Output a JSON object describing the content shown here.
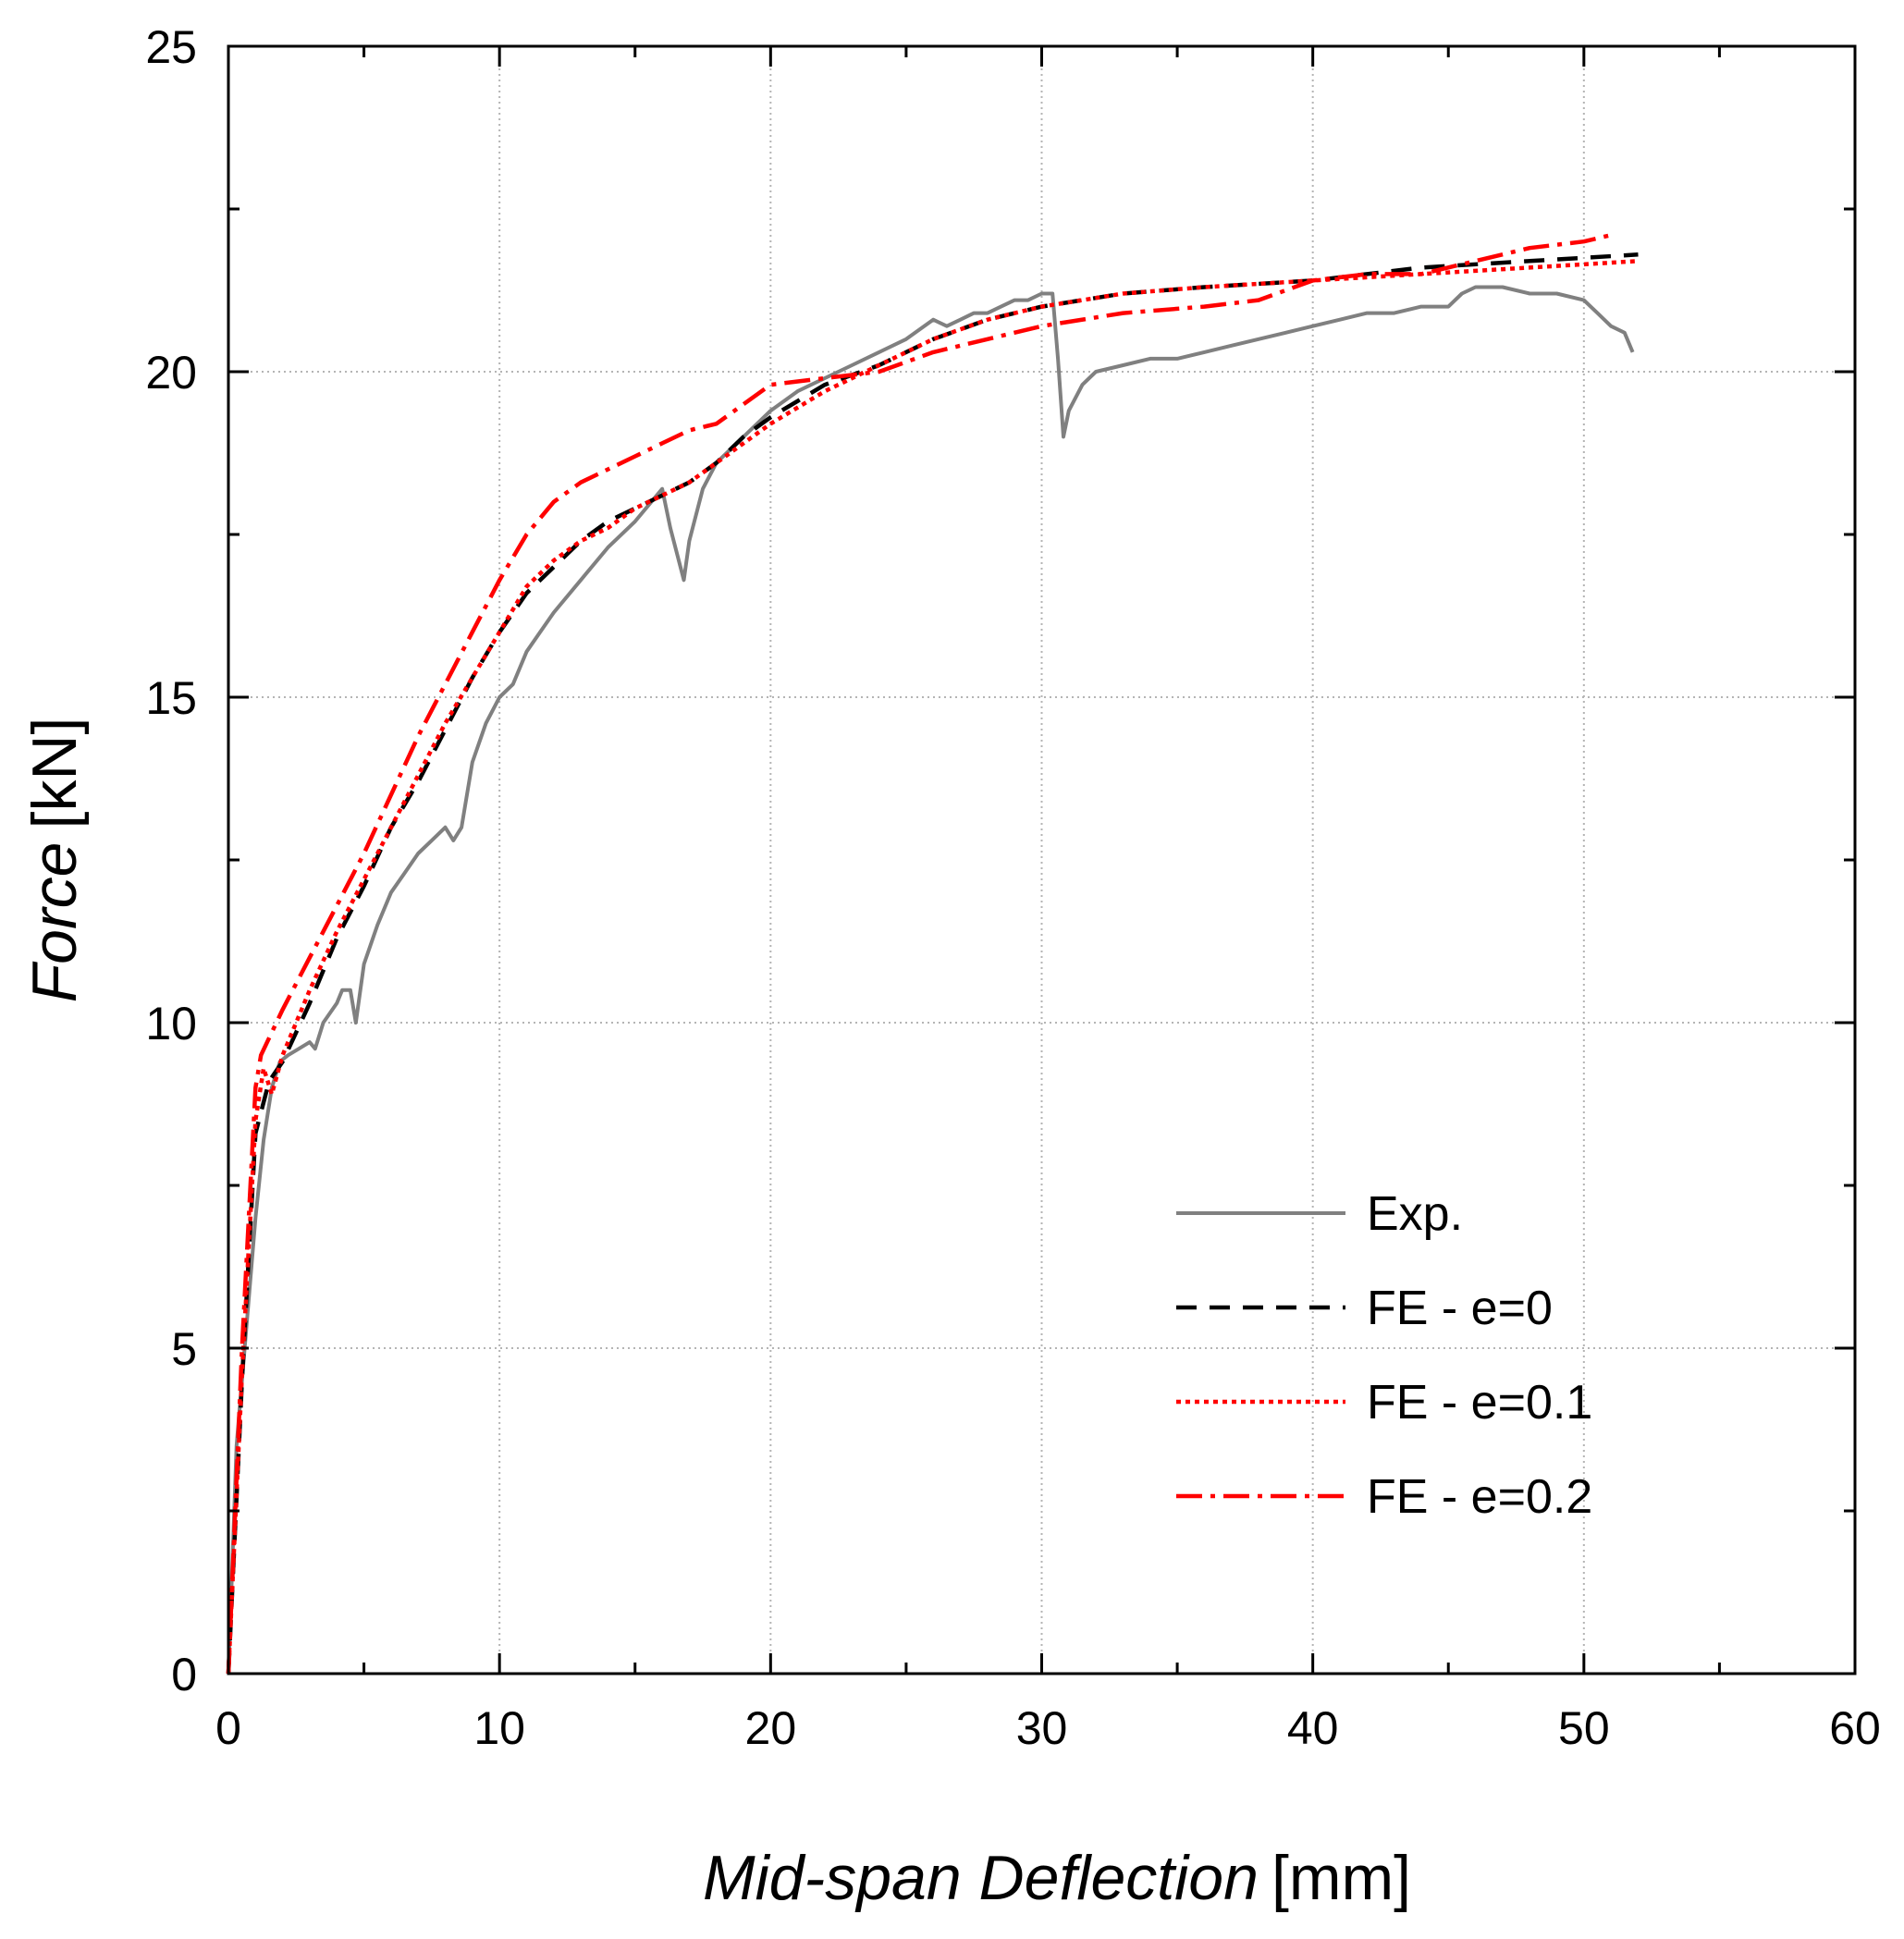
{
  "chart_data": {
    "type": "line",
    "title": "",
    "xlabel": {
      "italic": "Mid-span Deflection",
      "unit": "[mm]"
    },
    "ylabel": {
      "italic": "Force",
      "unit": "[kN]"
    },
    "xlim": [
      0,
      60
    ],
    "ylim": [
      0,
      25
    ],
    "x_ticks": [
      0,
      10,
      20,
      30,
      40,
      50,
      60
    ],
    "y_ticks": [
      0,
      5,
      10,
      15,
      20,
      25
    ],
    "x_tick_labels": [
      "0",
      "10",
      "20",
      "30",
      "40",
      "50",
      "60"
    ],
    "y_tick_labels": [
      "0",
      "5",
      "10",
      "15",
      "20",
      "25"
    ],
    "grid": true,
    "legend_position": "bottom-right",
    "series": [
      {
        "name": "Exp.",
        "color": "#808080",
        "style": "solid",
        "x": [
          0,
          0.3,
          0.6,
          1.0,
          1.3,
          1.6,
          1.9,
          2.2,
          2.6,
          3.0,
          3.2,
          3.5,
          4.0,
          4.2,
          4.5,
          4.7,
          5.0,
          5.5,
          6.0,
          6.5,
          7.0,
          7.5,
          8.0,
          8.3,
          8.6,
          9.0,
          9.5,
          10.0,
          10.5,
          11.0,
          11.5,
          12.0,
          13.0,
          14.0,
          15.0,
          16.0,
          16.3,
          16.8,
          17.0,
          17.5,
          18.0,
          19.0,
          20.0,
          21.0,
          22.0,
          23.0,
          24.0,
          25.0,
          26.0,
          26.5,
          27.0,
          27.5,
          28.0,
          28.5,
          29.0,
          29.5,
          30.0,
          30.4,
          30.6,
          30.8,
          31.0,
          31.5,
          32.0,
          33.0,
          34.0,
          35.0,
          36.0,
          37.0,
          38.0,
          39.0,
          40.0,
          41.0,
          42.0,
          43.0,
          44.0,
          45.0,
          45.5,
          46.0,
          47.0,
          48.0,
          49.0,
          50.0,
          50.5,
          51.0,
          51.5,
          51.8
        ],
        "y": [
          0,
          3.5,
          5.0,
          7.0,
          8.2,
          9.0,
          9.4,
          9.5,
          9.6,
          9.7,
          9.6,
          10.0,
          10.3,
          10.5,
          10.5,
          10.0,
          10.9,
          11.5,
          12.0,
          12.3,
          12.6,
          12.8,
          13.0,
          12.8,
          13.0,
          14.0,
          14.6,
          15.0,
          15.2,
          15.7,
          16.0,
          16.3,
          16.8,
          17.3,
          17.7,
          18.2,
          17.6,
          16.8,
          17.4,
          18.2,
          18.6,
          19.0,
          19.4,
          19.7,
          19.9,
          20.1,
          20.3,
          20.5,
          20.8,
          20.7,
          20.8,
          20.9,
          20.9,
          21.0,
          21.1,
          21.1,
          21.2,
          21.2,
          20.2,
          19.0,
          19.4,
          19.8,
          20.0,
          20.1,
          20.2,
          20.2,
          20.3,
          20.4,
          20.5,
          20.6,
          20.7,
          20.8,
          20.9,
          20.9,
          21.0,
          21.0,
          21.2,
          21.3,
          21.3,
          21.2,
          21.2,
          21.1,
          20.9,
          20.7,
          20.6,
          20.3
        ]
      },
      {
        "name": "FE - e=0",
        "color": "#000000",
        "style": "dashed",
        "x": [
          0,
          0.5,
          1.0,
          1.5,
          2.0,
          3.0,
          4.0,
          5.0,
          6.0,
          7.0,
          8.0,
          9.0,
          10.0,
          11.0,
          12.0,
          13.0,
          14.0,
          15.0,
          16.0,
          17.0,
          18.0,
          19.0,
          20.0,
          22.0,
          24.0,
          26.0,
          28.0,
          30.0,
          33.0,
          36.0,
          40.0,
          44.0,
          48.0,
          52.0
        ],
        "y": [
          0,
          4.5,
          8.3,
          9.1,
          9.4,
          10.3,
          11.3,
          12.1,
          13.0,
          13.7,
          14.5,
          15.3,
          16.0,
          16.6,
          17.0,
          17.4,
          17.7,
          17.9,
          18.1,
          18.3,
          18.6,
          19.0,
          19.3,
          19.8,
          20.1,
          20.5,
          20.8,
          21.0,
          21.2,
          21.3,
          21.4,
          21.6,
          21.7,
          21.8
        ]
      },
      {
        "name": "FE - e=0.1",
        "color": "#ff0000",
        "style": "dotted",
        "x": [
          0,
          0.5,
          1.0,
          1.3,
          1.6,
          2.0,
          3.0,
          4.0,
          5.0,
          6.0,
          7.0,
          8.0,
          9.0,
          10.0,
          11.0,
          12.0,
          13.0,
          14.0,
          15.0,
          16.0,
          17.0,
          18.0,
          19.0,
          20.0,
          22.0,
          24.0,
          26.0,
          28.0,
          30.0,
          33.0,
          36.0,
          40.0,
          44.0,
          48.0,
          52.0
        ],
        "y": [
          0,
          4.6,
          8.5,
          9.3,
          8.9,
          9.5,
          10.5,
          11.4,
          12.2,
          13.0,
          13.8,
          14.6,
          15.3,
          16.0,
          16.7,
          17.1,
          17.4,
          17.6,
          17.9,
          18.1,
          18.3,
          18.6,
          18.9,
          19.2,
          19.7,
          20.1,
          20.5,
          20.8,
          21.0,
          21.2,
          21.3,
          21.4,
          21.5,
          21.6,
          21.7
        ]
      },
      {
        "name": "FE - e=0.2",
        "color": "#ff0000",
        "style": "dashdot",
        "x": [
          0,
          0.5,
          1.0,
          1.2,
          2.0,
          3.0,
          4.0,
          5.0,
          6.0,
          7.0,
          8.0,
          9.0,
          10.0,
          11.0,
          12.0,
          13.0,
          14.0,
          15.0,
          16.0,
          17.0,
          18.0,
          19.0,
          20.0,
          22.0,
          24.0,
          26.0,
          28.0,
          30.0,
          33.0,
          36.0,
          38.0,
          40.0,
          42.0,
          44.0,
          46.0,
          48.0,
          50.0,
          51.0
        ],
        "y": [
          0,
          5.0,
          9.0,
          9.5,
          10.2,
          11.0,
          11.8,
          12.6,
          13.5,
          14.4,
          15.2,
          16.0,
          16.8,
          17.5,
          18.0,
          18.3,
          18.5,
          18.7,
          18.9,
          19.1,
          19.2,
          19.5,
          19.8,
          19.9,
          20.0,
          20.3,
          20.5,
          20.7,
          20.9,
          21.0,
          21.1,
          21.4,
          21.5,
          21.5,
          21.7,
          21.9,
          22.0,
          22.1
        ]
      }
    ]
  }
}
